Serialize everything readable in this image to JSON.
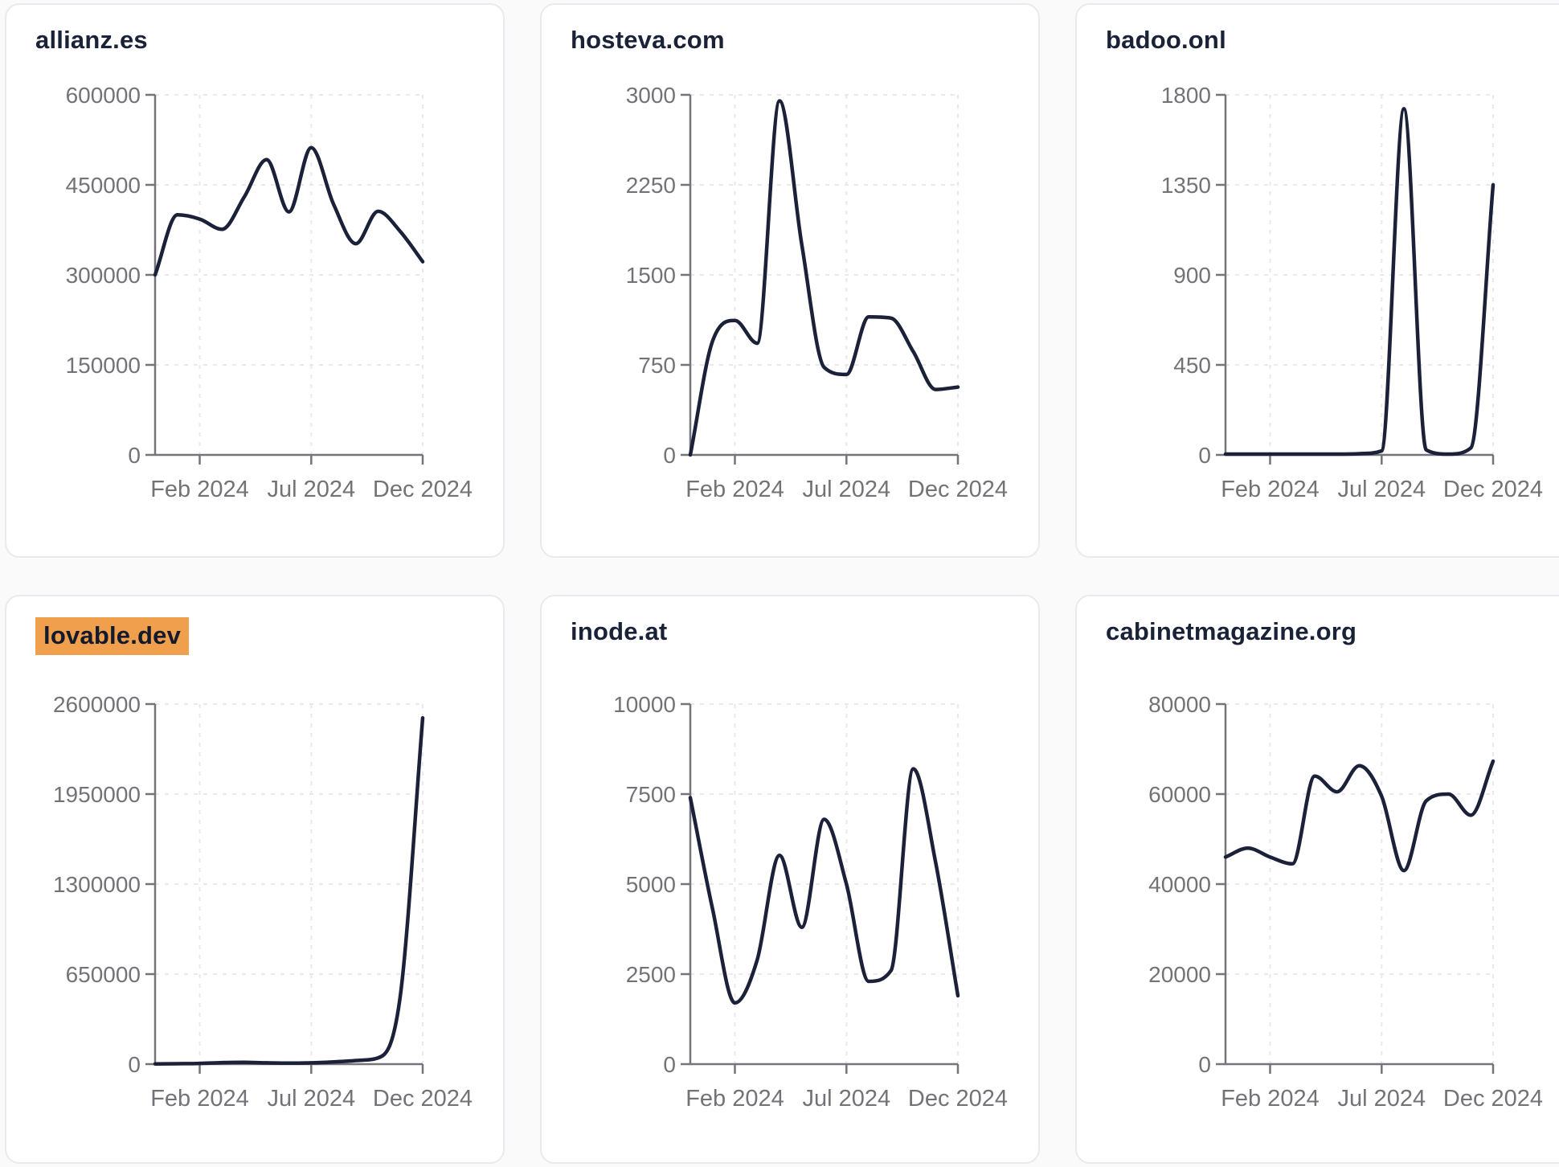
{
  "page": {
    "background": "#fafafa",
    "layout": "2x3-grid-of-domain-traffic-charts"
  },
  "styles": {
    "line_color": "#1b2139",
    "axis_color": "#74747a",
    "tick_label_color": "#737377",
    "grid_color": "#e9e9ed",
    "card_background": "#ffffff",
    "card_border": "#e9e9ef",
    "title_color": "#1a2238",
    "highlight_color": "#f09f4d"
  },
  "chart_data": [
    {
      "type": "line",
      "title": "allianz.es",
      "highlighted": false,
      "x": [
        "Dec 2023",
        "Jan 2024",
        "Feb 2024",
        "Mar 2024",
        "Apr 2024",
        "May 2024",
        "Jun 2024",
        "Jul 2024",
        "Aug 2024",
        "Sep 2024",
        "Oct 2024",
        "Nov 2024",
        "Dec 2024"
      ],
      "values": [
        300000,
        400000,
        393000,
        376000,
        430000,
        492000,
        405000,
        512000,
        418000,
        352000,
        406000,
        372000,
        322000
      ],
      "y_ticks": [
        0,
        150000,
        300000,
        450000,
        600000
      ],
      "ylim": [
        0,
        600000
      ],
      "x_tick_labels": [
        "Feb 2024",
        "Jul 2024",
        "Dec 2024"
      ],
      "x_tick_positions": [
        2,
        7,
        12
      ],
      "grid": true,
      "legend": false
    },
    {
      "type": "line",
      "title": "hosteva.com",
      "highlighted": false,
      "x": [
        "Dec 2023",
        "Jan 2024",
        "Feb 2024",
        "Mar 2024",
        "Apr 2024",
        "May 2024",
        "Jun 2024",
        "Jul 2024",
        "Aug 2024",
        "Sep 2024",
        "Oct 2024",
        "Nov 2024",
        "Dec 2024"
      ],
      "values": [
        0,
        950,
        1120,
        930,
        2950,
        1750,
        730,
        670,
        1150,
        1140,
        860,
        545,
        565
      ],
      "y_ticks": [
        0,
        750,
        1500,
        2250,
        3000
      ],
      "ylim": [
        0,
        3000
      ],
      "x_tick_labels": [
        "Feb 2024",
        "Jul 2024",
        "Dec 2024"
      ],
      "x_tick_positions": [
        2,
        7,
        12
      ],
      "grid": true,
      "legend": false
    },
    {
      "type": "line",
      "title": "badoo.onl",
      "highlighted": false,
      "x": [
        "Dec 2023",
        "Jan 2024",
        "Feb 2024",
        "Mar 2024",
        "Apr 2024",
        "May 2024",
        "Jun 2024",
        "Jul 2024",
        "Aug 2024",
        "Sep 2024",
        "Oct 2024",
        "Nov 2024",
        "Dec 2024"
      ],
      "values": [
        4,
        4,
        4,
        4,
        4,
        4,
        6,
        20,
        1730,
        25,
        4,
        35,
        1350
      ],
      "y_ticks": [
        0,
        450,
        900,
        1350,
        1800
      ],
      "ylim": [
        0,
        1800
      ],
      "x_tick_labels": [
        "Feb 2024",
        "Jul 2024",
        "Dec 2024"
      ],
      "x_tick_positions": [
        2,
        7,
        12
      ],
      "grid": true,
      "legend": false
    },
    {
      "type": "line",
      "title": "lovable.dev",
      "highlighted": true,
      "x": [
        "Dec 2023",
        "Jan 2024",
        "Feb 2024",
        "Mar 2024",
        "Apr 2024",
        "May 2024",
        "Jun 2024",
        "Jul 2024",
        "Aug 2024",
        "Sep 2024",
        "Oct 2024",
        "Nov 2024",
        "Dec 2024"
      ],
      "values": [
        2000,
        3000,
        5000,
        11000,
        13000,
        9000,
        7000,
        9000,
        16000,
        26000,
        45000,
        500000,
        2500000
      ],
      "y_ticks": [
        0,
        650000,
        1300000,
        1950000,
        2600000
      ],
      "ylim": [
        0,
        2600000
      ],
      "x_tick_labels": [
        "Feb 2024",
        "Jul 2024",
        "Dec 2024"
      ],
      "x_tick_positions": [
        2,
        7,
        12
      ],
      "grid": true,
      "legend": false
    },
    {
      "type": "line",
      "title": "inode.at",
      "highlighted": false,
      "x": [
        "Dec 2023",
        "Jan 2024",
        "Feb 2024",
        "Mar 2024",
        "Apr 2024",
        "May 2024",
        "Jun 2024",
        "Jul 2024",
        "Aug 2024",
        "Sep 2024",
        "Oct 2024",
        "Nov 2024",
        "Dec 2024"
      ],
      "values": [
        7400,
        4300,
        1700,
        2900,
        5800,
        3800,
        6800,
        5000,
        2300,
        2600,
        8200,
        5600,
        1900
      ],
      "y_ticks": [
        0,
        2500,
        5000,
        7500,
        10000
      ],
      "ylim": [
        0,
        10000
      ],
      "x_tick_labels": [
        "Feb 2024",
        "Jul 2024",
        "Dec 2024"
      ],
      "x_tick_positions": [
        2,
        7,
        12
      ],
      "grid": true,
      "legend": false
    },
    {
      "type": "line",
      "title": "cabinetmagazine.org",
      "highlighted": false,
      "x": [
        "Dec 2023",
        "Jan 2024",
        "Feb 2024",
        "Mar 2024",
        "Apr 2024",
        "May 2024",
        "Jun 2024",
        "Jul 2024",
        "Aug 2024",
        "Sep 2024",
        "Oct 2024",
        "Nov 2024",
        "Dec 2024"
      ],
      "values": [
        46000,
        48000,
        46000,
        44500,
        64000,
        60500,
        66300,
        59500,
        43000,
        58500,
        60000,
        55300,
        67300
      ],
      "y_ticks": [
        0,
        20000,
        40000,
        60000,
        80000
      ],
      "ylim": [
        0,
        80000
      ],
      "x_tick_labels": [
        "Feb 2024",
        "Jul 2024",
        "Dec 2024"
      ],
      "x_tick_positions": [
        2,
        7,
        12
      ],
      "grid": true,
      "legend": false
    }
  ]
}
